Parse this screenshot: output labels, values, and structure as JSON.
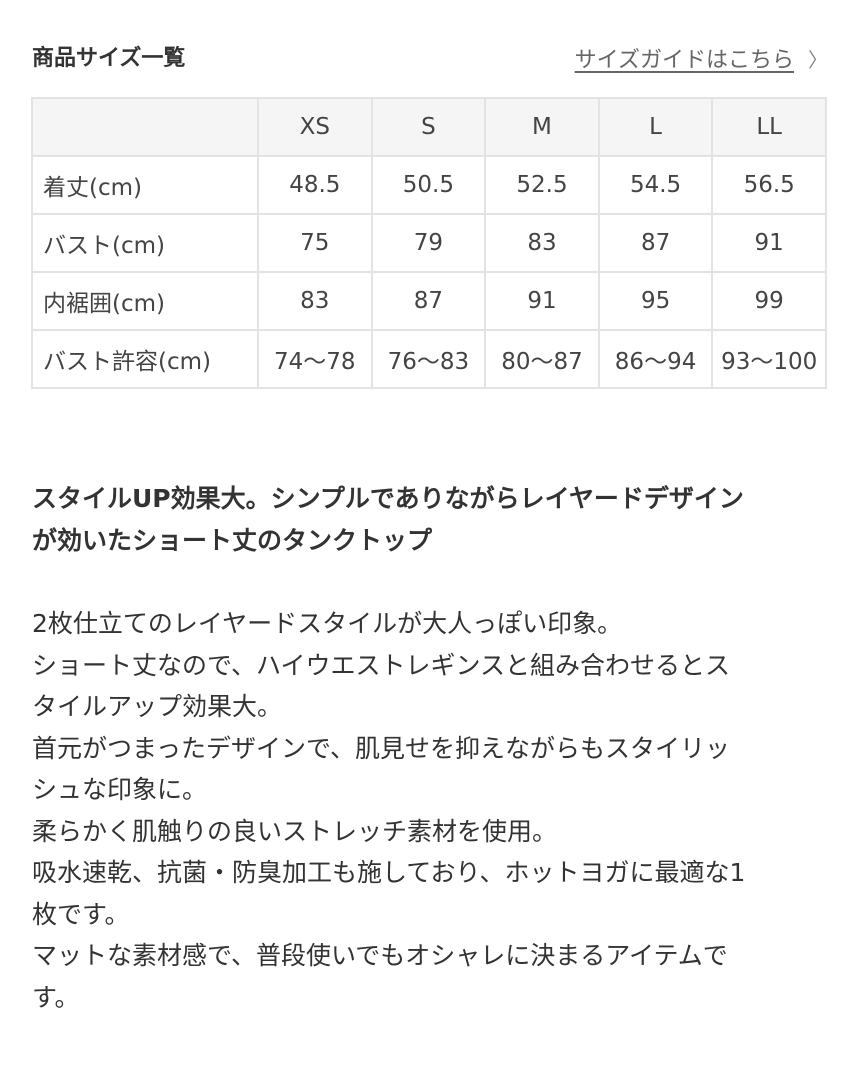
{
  "header": {
    "title": "商品サイズ一覧",
    "guide_link": "サイズガイドはこちら",
    "guide_icon": "chevron-right-icon"
  },
  "size_table": {
    "columns": [
      "",
      "XS",
      "S",
      "M",
      "L",
      "LL"
    ],
    "rows": [
      {
        "label": "着丈(cm)",
        "values": [
          "48.5",
          "50.5",
          "52.5",
          "54.5",
          "56.5"
        ]
      },
      {
        "label": "バスト(cm)",
        "values": [
          "75",
          "79",
          "83",
          "87",
          "91"
        ]
      },
      {
        "label": "内裾囲(cm)",
        "values": [
          "83",
          "87",
          "91",
          "95",
          "99"
        ]
      },
      {
        "label": "バスト許容(cm)",
        "values": [
          "74〜78",
          "76〜83",
          "80〜87",
          "86〜94",
          "93〜100"
        ]
      }
    ]
  },
  "description": {
    "lead_lines": [
      "スタイルUP効果大。シンプルでありながらレイヤードデザイン",
      "が効いたショート丈のタンクトップ"
    ],
    "body_lines": [
      "2枚仕立てのレイヤードスタイルが大人っぽい印象。",
      "ショート丈なので、ハイウエストレギンスと組み合わせるとス",
      "タイルアップ効果大。",
      "首元がつまったデザインで、肌見せを抑えながらもスタイリッ",
      "シュな印象に。",
      "柔らかく肌触りの良いストレッチ素材を使用。",
      "吸水速乾、抗菌・防臭加工も施しており、ホットヨガに最適な1",
      "枚です。",
      "マットな素材感で、普段使いでもオシャレに決まるアイテムで",
      "す。"
    ]
  }
}
